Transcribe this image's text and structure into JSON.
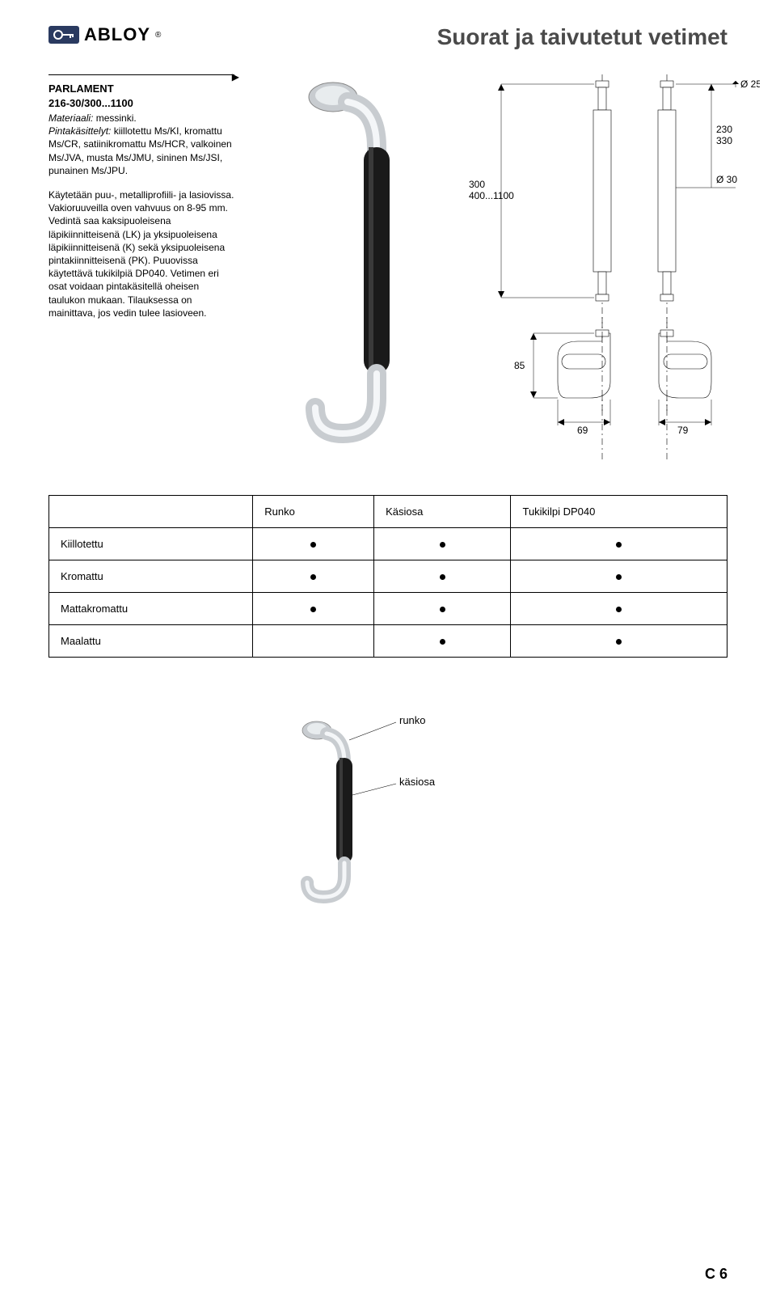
{
  "brand": "ABLOY",
  "page_title": "Suorat ja taivutetut vetimet",
  "product": {
    "name_line1": "PARLAMENT",
    "name_line2": "216-30/300...1100",
    "material_label": "Materiaali:",
    "material_value": "messinki.",
    "finish_label": "Pintakäsittelyt:",
    "finish_value": "kiillotettu Ms/KI, kromattu Ms/CR, satiinikromattu Ms/HCR, valkoinen Ms/JVA, musta Ms/JMU, sininen Ms/JSI, punainen Ms/JPU.",
    "body_para": "Käytetään puu-, metalliprofiili- ja lasiovissa. Vakioruuveilla oven vahvuus on 8-95 mm. Vedintä saa kaksipuoleisena läpikiinnitteisenä (LK) ja yksipuoleisena läpikiinnitteisenä (K) sekä yksipuoleisena pintakiinnitteisenä (PK). Puuovissa käytettävä tukikilpiä DP040. Vetimen eri osat voidaan pintakäsitellä oheisen taulukon mukaan. Tilauksessa on mainittava, jos vedin tulee lasioveen."
  },
  "tech_drawing": {
    "height_label_1": "300",
    "height_label_2": "400...1100",
    "spacing_1": "230",
    "spacing_2": "330",
    "dia_top": "Ø 25",
    "dia_mid": "Ø 30",
    "depth": "85",
    "mount_left": "69",
    "mount_right": "79",
    "line_color": "#000000",
    "dash_color": "#000000",
    "fill_light": "#f0f0f0",
    "fill_white": "#ffffff",
    "font_size": 12
  },
  "finish_table": {
    "headers": [
      "",
      "Runko",
      "Käsiosa",
      "Tukikilpi DP040"
    ],
    "rows": [
      {
        "label": "Kiillotettu",
        "cells": [
          true,
          true,
          true
        ]
      },
      {
        "label": "Kromattu",
        "cells": [
          true,
          true,
          true
        ]
      },
      {
        "label": "Mattakromattu",
        "cells": [
          true,
          true,
          true
        ]
      },
      {
        "label": "Maalattu",
        "cells": [
          false,
          true,
          true
        ]
      }
    ]
  },
  "labels": {
    "runko": "runko",
    "kasiosa": "käsiosa"
  },
  "page_number": "C 6",
  "photo": {
    "body_color": "#d0d4d8",
    "grip_color": "#1a1a1a",
    "highlight": "#ffffff"
  }
}
